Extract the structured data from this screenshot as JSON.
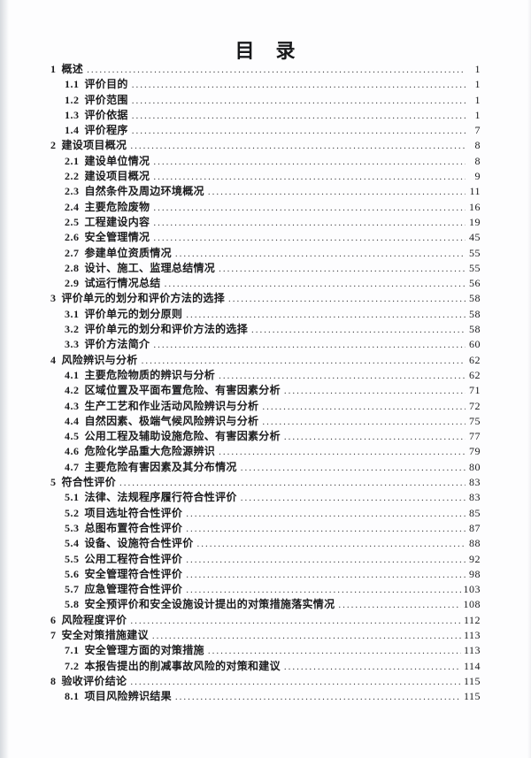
{
  "page": {
    "title": "目　录"
  },
  "toc": {
    "entries": [
      {
        "level": 1,
        "num": "1",
        "title": "概述",
        "page": "1"
      },
      {
        "level": 2,
        "num": "1.1",
        "title": "评价目的",
        "page": "1"
      },
      {
        "level": 2,
        "num": "1.2",
        "title": "评价范围",
        "page": "1"
      },
      {
        "level": 2,
        "num": "1.3",
        "title": "评价依据",
        "page": "1"
      },
      {
        "level": 2,
        "num": "1.4",
        "title": "评价程序",
        "page": "7"
      },
      {
        "level": 1,
        "num": "2",
        "title": "建设项目概况",
        "page": "8"
      },
      {
        "level": 2,
        "num": "2.1",
        "title": "建设单位情况",
        "page": "8"
      },
      {
        "level": 2,
        "num": "2.2",
        "title": "建设项目概况",
        "page": "9"
      },
      {
        "level": 2,
        "num": "2.3",
        "title": "自然条件及周边环境概况",
        "page": "11"
      },
      {
        "level": 2,
        "num": "2.4",
        "title": "主要危险废物",
        "page": "16"
      },
      {
        "level": 2,
        "num": "2.5",
        "title": "工程建设内容",
        "page": "19"
      },
      {
        "level": 2,
        "num": "2.6",
        "title": "安全管理情况",
        "page": "45"
      },
      {
        "level": 2,
        "num": "2.7",
        "title": "参建单位资质情况",
        "page": "55"
      },
      {
        "level": 2,
        "num": "2.8",
        "title": "设计、施工、监理总结情况",
        "page": "55"
      },
      {
        "level": 2,
        "num": "2.9",
        "title": "试运行情况总结",
        "page": "56"
      },
      {
        "level": 1,
        "num": "3",
        "title": "评价单元的划分和评价方法的选择",
        "page": "58"
      },
      {
        "level": 2,
        "num": "3.1",
        "title": "评价单元的划分原则",
        "page": "58"
      },
      {
        "level": 2,
        "num": "3.2",
        "title": "评价单元的划分和评价方法的选择",
        "page": "58"
      },
      {
        "level": 2,
        "num": "3.3",
        "title": "评价方法简介",
        "page": "60"
      },
      {
        "level": 1,
        "num": "4",
        "title": "风险辨识与分析",
        "page": "62"
      },
      {
        "level": 2,
        "num": "4.1",
        "title": "主要危险物质的辨识与分析",
        "page": "62"
      },
      {
        "level": 2,
        "num": "4.2",
        "title": "区域位置及平面布置危险、有害因素分析",
        "page": "71"
      },
      {
        "level": 2,
        "num": "4.3",
        "title": "生产工艺和作业活动风险辨识与分析",
        "page": "72"
      },
      {
        "level": 2,
        "num": "4.4",
        "title": "自然因素、极端气候风险辨识与分析",
        "page": "75"
      },
      {
        "level": 2,
        "num": "4.5",
        "title": "公用工程及辅助设施危险、有害因素分析",
        "page": "77"
      },
      {
        "level": 2,
        "num": "4.6",
        "title": "危险化学品重大危险源辨识",
        "page": "79"
      },
      {
        "level": 2,
        "num": "4.7",
        "title": "主要危险有害因素及其分布情况",
        "page": "80"
      },
      {
        "level": 1,
        "num": "5",
        "title": "符合性评价",
        "page": "83"
      },
      {
        "level": 2,
        "num": "5.1",
        "title": "法律、法规程序履行符合性评价",
        "page": "83"
      },
      {
        "level": 2,
        "num": "5.2",
        "title": "项目选址符合性评价",
        "page": "85"
      },
      {
        "level": 2,
        "num": "5.3",
        "title": "总图布置符合性评价",
        "page": "87"
      },
      {
        "level": 2,
        "num": "5.4",
        "title": "设备、设施符合性评价",
        "page": "88"
      },
      {
        "level": 2,
        "num": "5.5",
        "title": "公用工程符合性评价",
        "page": "92"
      },
      {
        "level": 2,
        "num": "5.6",
        "title": "安全管理符合性评价",
        "page": "98"
      },
      {
        "level": 2,
        "num": "5.7",
        "title": "应急管理符合性评价",
        "page": "103"
      },
      {
        "level": 2,
        "num": "5.8",
        "title": "安全预评价和安全设施设计提出的对策措施落实情况",
        "page": "108"
      },
      {
        "level": 1,
        "num": "6",
        "title": "风险程度评价",
        "page": "112"
      },
      {
        "level": 1,
        "num": "7",
        "title": "安全对策措施建议",
        "page": "113"
      },
      {
        "level": 2,
        "num": "7.1",
        "title": "安全管理方面的对策措施",
        "page": "113"
      },
      {
        "level": 2,
        "num": "7.2",
        "title": "本报告提出的削减事故风险的对策和建议",
        "page": "114"
      },
      {
        "level": 1,
        "num": "8",
        "title": "验收评价结论",
        "page": "115"
      },
      {
        "level": 2,
        "num": "8.1",
        "title": "项目风险辨识结果",
        "page": "115"
      }
    ]
  }
}
